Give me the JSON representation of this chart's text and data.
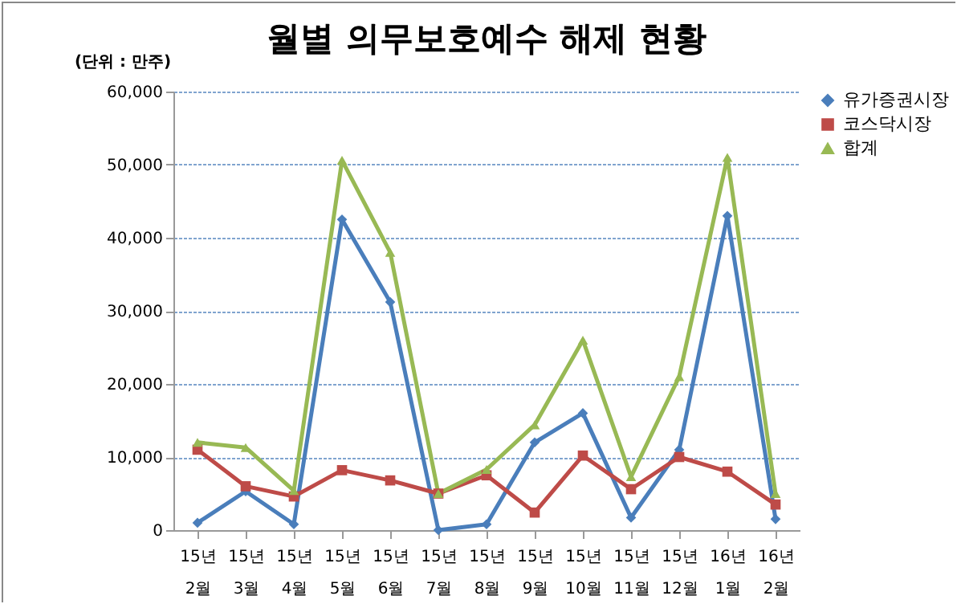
{
  "chart_data": {
    "type": "line",
    "title": "월별 의무보호예수 해제 현황",
    "ylabel": "(단위 : 만주)",
    "categories": [
      "15년 2월",
      "15년 3월",
      "15년 4월",
      "15년 5월",
      "15년 6월",
      "15년 7월",
      "15년 8월",
      "15년 9월",
      "15년 10월",
      "15년 11월",
      "15년 12월",
      "16년 1월",
      "16년 2월"
    ],
    "ylim": [
      0,
      60000
    ],
    "yticks": [
      {
        "value": 0,
        "label": "0"
      },
      {
        "value": 10000,
        "label": "10,000"
      },
      {
        "value": 20000,
        "label": "20,000"
      },
      {
        "value": 30000,
        "label": "30,000"
      },
      {
        "value": 40000,
        "label": "40,000"
      },
      {
        "value": 50000,
        "label": "50,000"
      },
      {
        "value": 60000,
        "label": "60,000"
      }
    ],
    "grid": "y",
    "legend": "right",
    "series": [
      {
        "name": "유가증권시장",
        "color": "#4a7ebb",
        "marker": "diamond",
        "values": [
          1000,
          5300,
          800,
          42500,
          31200,
          0,
          800,
          12000,
          16000,
          1700,
          11000,
          43000,
          1500
        ]
      },
      {
        "name": "코스닥시장",
        "color": "#be4b48",
        "marker": "square",
        "values": [
          11000,
          6000,
          4600,
          8200,
          6800,
          5000,
          7500,
          2400,
          10200,
          5600,
          10000,
          8000,
          3500
        ]
      },
      {
        "name": "합계",
        "color": "#98b954",
        "marker": "triangle",
        "values": [
          12000,
          11300,
          5400,
          50600,
          38000,
          5000,
          8300,
          14400,
          26000,
          7300,
          21000,
          51000,
          5000
        ]
      }
    ]
  }
}
